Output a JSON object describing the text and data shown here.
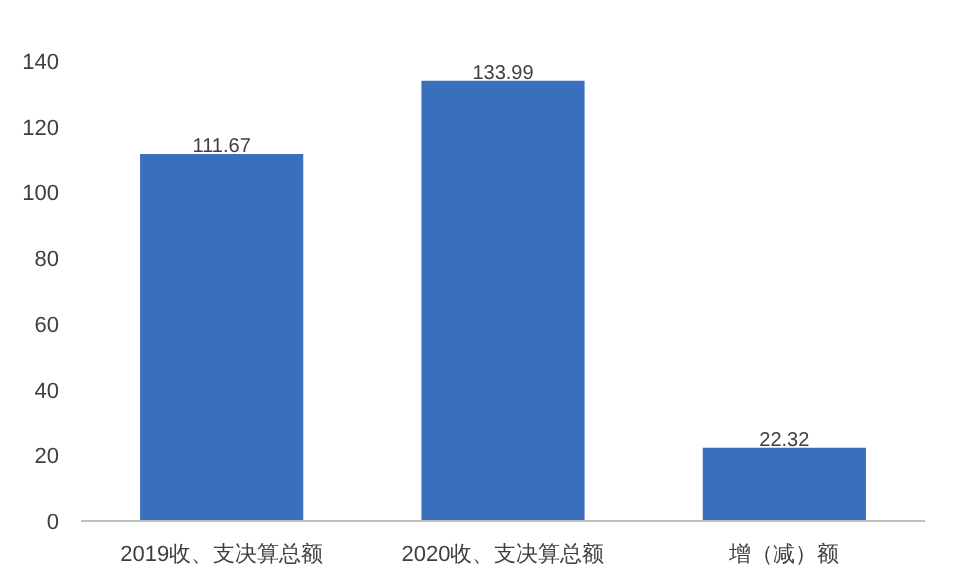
{
  "chart_data": {
    "type": "bar",
    "categories": [
      "2019收、支决算总额",
      "2020收、支决算总额",
      "增（减）额"
    ],
    "values": [
      111.67,
      133.99,
      22.32
    ],
    "color": "#3a6fbd",
    "ylim": [
      0,
      140
    ],
    "yticks": [
      0,
      20,
      40,
      60,
      80,
      100,
      120,
      140
    ],
    "grid": false,
    "data_labels": true
  }
}
